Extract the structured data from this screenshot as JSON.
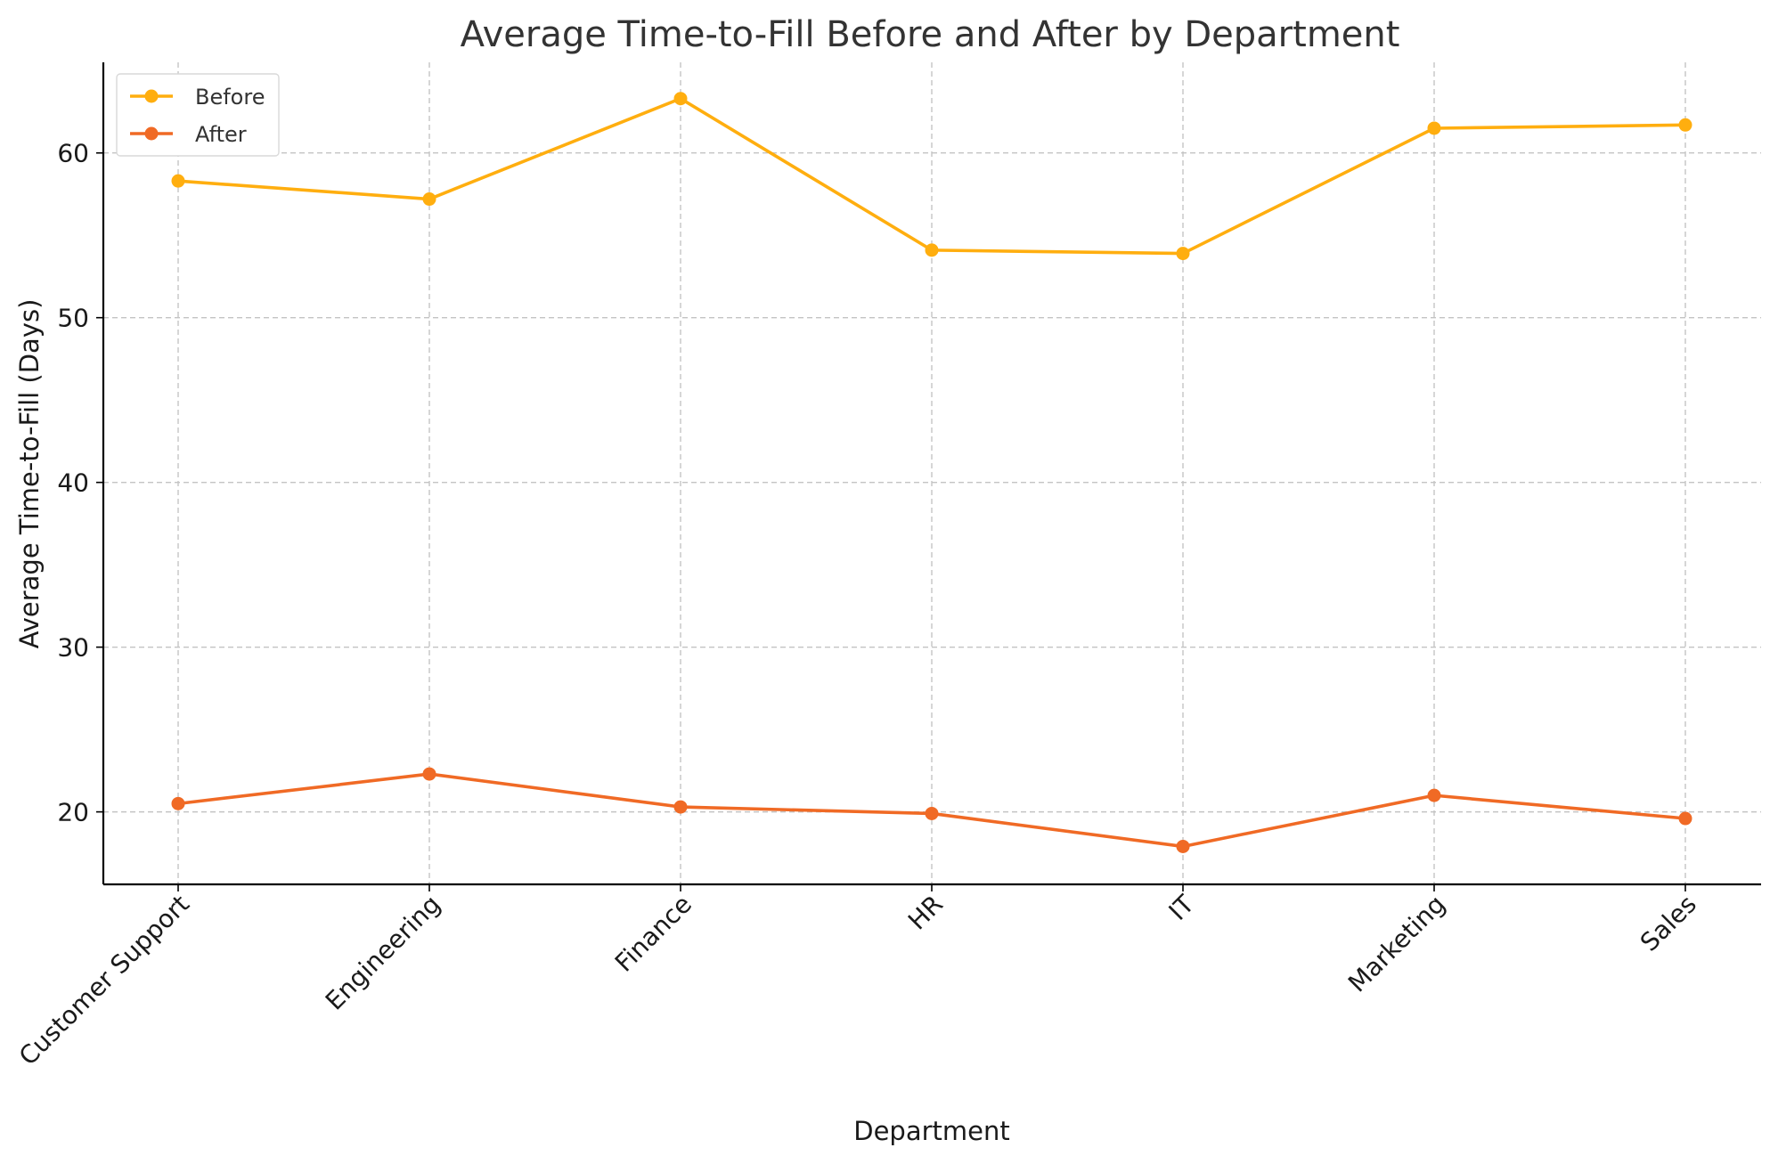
{
  "chart_data": {
    "type": "line",
    "title": "Average Time-to-Fill Before and After by Department",
    "xlabel": "Department",
    "ylabel": "Average Time-to-Fill (Days)",
    "categories": [
      "Customer Support",
      "Engineering",
      "Finance",
      "HR",
      "IT",
      "Marketing",
      "Sales"
    ],
    "series": [
      {
        "name": "Before",
        "color": "#ffae0f",
        "values": [
          58.3,
          57.2,
          63.3,
          54.1,
          53.9,
          61.5,
          61.7
        ]
      },
      {
        "name": "After",
        "color": "#f06a25",
        "values": [
          20.5,
          22.3,
          20.3,
          19.9,
          17.9,
          21.0,
          19.6
        ]
      }
    ],
    "ylim": [
      15.6,
      65.5
    ],
    "yticks": [
      20,
      30,
      40,
      50,
      60
    ],
    "grid": true,
    "legend_position": "top-left"
  }
}
